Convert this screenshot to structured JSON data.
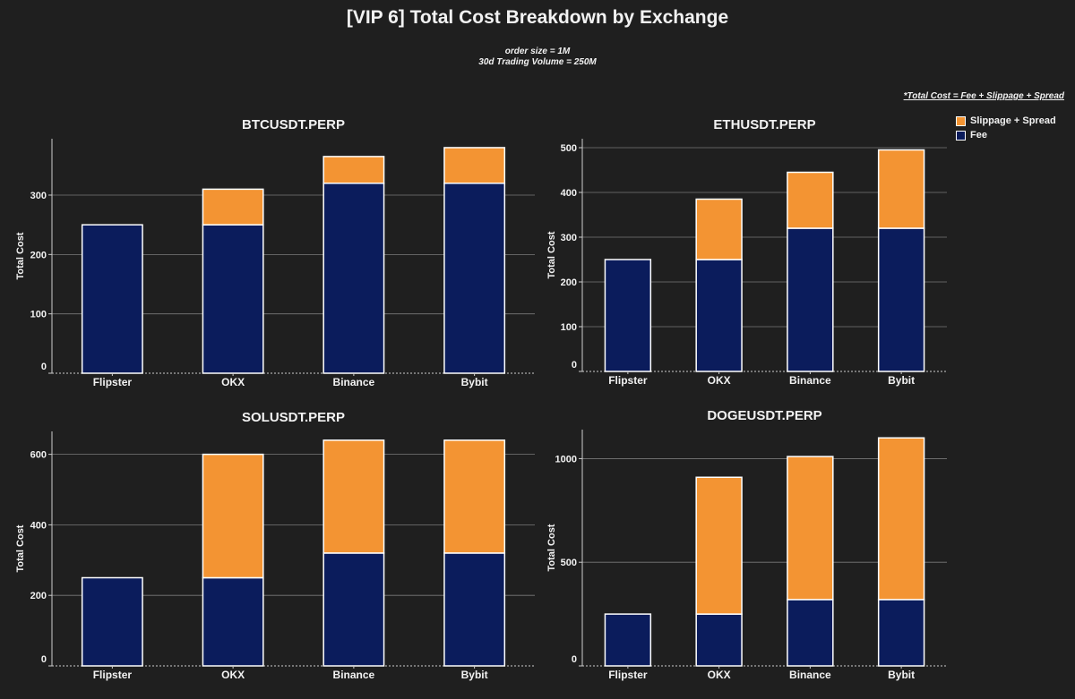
{
  "title": "[VIP 6] Total Cost Breakdown by Exchange",
  "subtitle_line1": "order size = 1M",
  "subtitle_line2": "30d Trading Volume  = 250M",
  "note": "*Total Cost = Fee + Slippage + Spread",
  "legend": [
    {
      "name": "Slippage + Spread",
      "color": "#f39433"
    },
    {
      "name": "Fee",
      "color": "#0b1c5c"
    }
  ],
  "colors": {
    "fee": "#0b1c5c",
    "slippage": "#f39433",
    "background": "#1f1f1f",
    "grid": "#7a7a7a"
  },
  "chart_data": [
    {
      "type": "bar",
      "stacked": true,
      "title": "BTCUSDT.PERP",
      "xlabel": "",
      "ylabel": "Total Cost",
      "ylim": [
        0,
        395
      ],
      "yticks": [
        0,
        100,
        200,
        300
      ],
      "categories": [
        "Flipster",
        "OKX",
        "Binance",
        "Bybit"
      ],
      "series": [
        {
          "name": "Fee",
          "values": [
            250,
            250,
            320,
            320
          ]
        },
        {
          "name": "Slippage + Spread",
          "values": [
            0,
            60,
            45,
            60
          ]
        }
      ]
    },
    {
      "type": "bar",
      "stacked": true,
      "title": "ETHUSDT.PERP",
      "xlabel": "",
      "ylabel": "Total Cost",
      "ylim": [
        0,
        520
      ],
      "yticks": [
        0,
        100,
        200,
        300,
        400,
        500
      ],
      "categories": [
        "Flipster",
        "OKX",
        "Binance",
        "Bybit"
      ],
      "series": [
        {
          "name": "Fee",
          "values": [
            250,
            250,
            320,
            320
          ]
        },
        {
          "name": "Slippage + Spread",
          "values": [
            0,
            135,
            125,
            175
          ]
        }
      ]
    },
    {
      "type": "bar",
      "stacked": true,
      "title": "SOLUSDT.PERP",
      "xlabel": "",
      "ylabel": "Total Cost",
      "ylim": [
        0,
        665
      ],
      "yticks": [
        0,
        200,
        400,
        600
      ],
      "categories": [
        "Flipster",
        "OKX",
        "Binance",
        "Bybit"
      ],
      "series": [
        {
          "name": "Fee",
          "values": [
            250,
            250,
            320,
            320
          ]
        },
        {
          "name": "Slippage + Spread",
          "values": [
            0,
            350,
            320,
            320
          ]
        }
      ]
    },
    {
      "type": "bar",
      "stacked": true,
      "title": "DOGEUSDT.PERP",
      "xlabel": "",
      "ylabel": "Total Cost",
      "ylim": [
        0,
        1140
      ],
      "yticks": [
        0,
        500,
        1000
      ],
      "categories": [
        "Flipster",
        "OKX",
        "Binance",
        "Bybit"
      ],
      "series": [
        {
          "name": "Fee",
          "values": [
            250,
            250,
            320,
            320
          ]
        },
        {
          "name": "Slippage + Spread",
          "values": [
            0,
            660,
            690,
            780
          ]
        }
      ]
    }
  ]
}
